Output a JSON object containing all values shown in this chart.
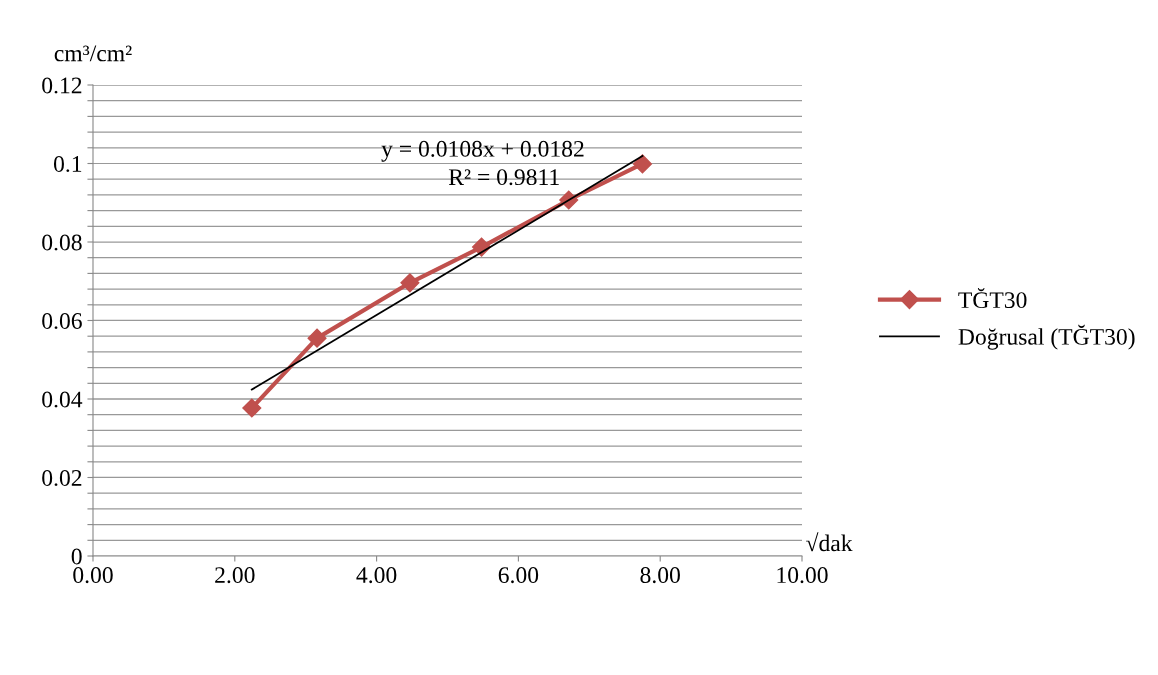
{
  "chart_data": {
    "type": "line",
    "xlabel": "√dak",
    "ylabel": "cm³/cm²",
    "series": [
      {
        "name": "TĞT30",
        "color": "#c0504d",
        "marker": "diamond",
        "x": [
          2.24,
          3.16,
          4.47,
          5.48,
          6.71,
          7.75
        ],
        "values": [
          0.0377,
          0.0555,
          0.0696,
          0.0787,
          0.0907,
          0.0999
        ]
      },
      {
        "name": "Doğrusal (TĞT30)",
        "color": "#000000",
        "marker": "none",
        "x": [
          2.24,
          7.75
        ],
        "values": [
          0.0424,
          0.1019
        ]
      }
    ],
    "xlim": [
      0,
      10
    ],
    "ylim": [
      0,
      0.12
    ],
    "xticks": [
      {
        "value": 0,
        "label": "0.00"
      },
      {
        "value": 2,
        "label": "2.00"
      },
      {
        "value": 4,
        "label": "4.00"
      },
      {
        "value": 6,
        "label": "6.00"
      },
      {
        "value": 8,
        "label": "8.00"
      },
      {
        "value": 10,
        "label": "10.00"
      }
    ],
    "yticks": [
      0,
      {
        "value": 0.004,
        "label": null
      },
      {
        "value": 0.008,
        "label": null
      },
      {
        "value": 0.012,
        "label": null
      },
      {
        "value": 0.016,
        "label": null
      },
      0.02,
      {
        "value": 0.024,
        "label": null
      },
      {
        "value": 0.028,
        "label": null
      },
      {
        "value": 0.032,
        "label": null
      },
      {
        "value": 0.036,
        "label": null
      },
      0.04,
      {
        "value": 0.044,
        "label": null
      },
      {
        "value": 0.048,
        "label": null
      },
      {
        "value": 0.052,
        "label": null
      },
      {
        "value": 0.056,
        "label": null
      },
      0.06,
      {
        "value": 0.064,
        "label": null
      },
      {
        "value": 0.068,
        "label": null
      },
      {
        "value": 0.072,
        "label": null
      },
      {
        "value": 0.076,
        "label": null
      },
      0.08,
      {
        "value": 0.084,
        "label": null
      },
      {
        "value": 0.088,
        "label": null
      },
      {
        "value": 0.092,
        "label": null
      },
      {
        "value": 0.096,
        "label": null
      },
      0.1,
      {
        "value": 0.104,
        "label": null
      },
      {
        "value": 0.108,
        "label": null
      },
      {
        "value": 0.112,
        "label": null
      },
      {
        "value": 0.116,
        "label": null
      },
      0.12
    ],
    "grid": "y",
    "legend": "right",
    "annotations": [
      "y = 0.0108x + 0.0182",
      "R² = 0.9811"
    ]
  }
}
